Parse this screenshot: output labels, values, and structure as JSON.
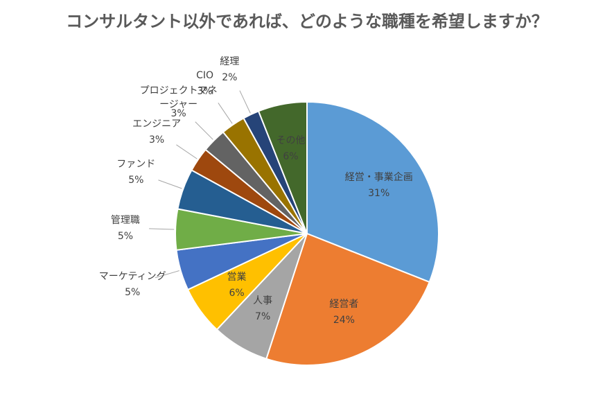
{
  "chart_data": {
    "type": "pie",
    "title": "コンサルタント以外であれば、どのような職種を希望しますか？",
    "categories": [
      "経営・事業企画",
      "経営者",
      "人事",
      "営業",
      "マーケティング",
      "管理職",
      "ファンド",
      "エンジニア",
      "プロジェクトマネージャー",
      "CIO",
      "経理",
      "その他"
    ],
    "values": [
      31,
      24,
      7,
      6,
      5,
      5,
      5,
      3,
      3,
      3,
      2,
      6
    ],
    "value_labels": [
      "31%",
      "24%",
      "7%",
      "6%",
      "5%",
      "5%",
      "5%",
      "3%",
      "3%",
      "3%",
      "2%",
      "6%"
    ],
    "colors": [
      "#5b9bd5",
      "#ed7d31",
      "#a5a5a5",
      "#ffc000",
      "#4472c4",
      "#70ad47",
      "#255e91",
      "#9e480e",
      "#636363",
      "#997300",
      "#264478",
      "#43682b"
    ]
  }
}
